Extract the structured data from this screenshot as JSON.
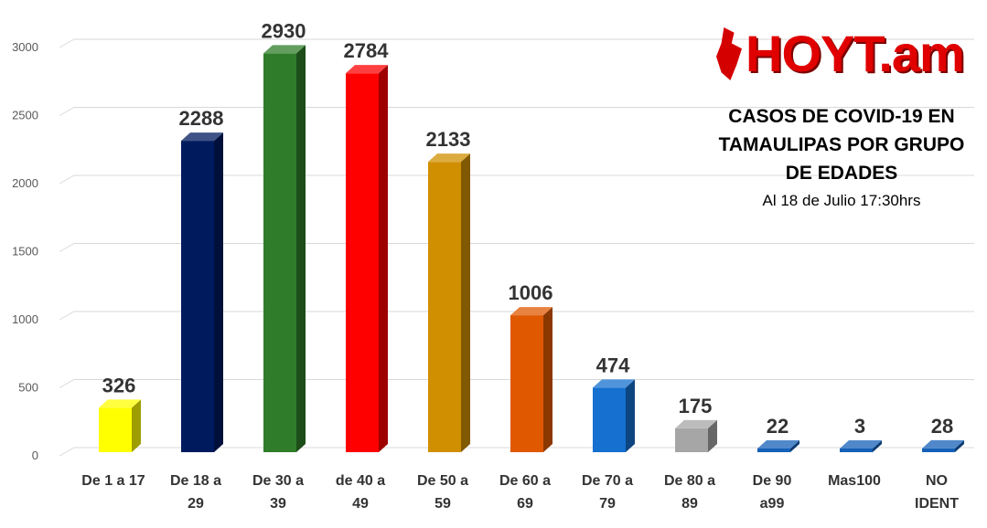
{
  "brand": {
    "logo_text": "HOYT.am"
  },
  "chart_data": {
    "type": "bar",
    "title_lines": [
      "CASOS DE COVID-19 EN",
      "TAMAULIPAS POR GRUPO",
      "DE EDADES"
    ],
    "subtitle": "Al 18 de Julio 17:30hrs",
    "categories": [
      [
        "De 1 a 17"
      ],
      [
        "De 18 a",
        "29"
      ],
      [
        "De 30 a",
        "39"
      ],
      [
        "de 40 a",
        "49"
      ],
      [
        "De 50 a",
        "59"
      ],
      [
        "De 60 a",
        "69"
      ],
      [
        "De 70 a",
        "79"
      ],
      [
        "De 80 a",
        "89"
      ],
      [
        "De 90",
        "a99"
      ],
      [
        "Mas100"
      ],
      [
        "NO",
        "IDENT"
      ]
    ],
    "values": [
      326,
      2288,
      2930,
      2784,
      2133,
      1006,
      474,
      175,
      22,
      3,
      28
    ],
    "colors": [
      "#ffff00",
      "#001a5e",
      "#2f7d2a",
      "#ff0000",
      "#d08f00",
      "#e05800",
      "#1570d0",
      "#a6a6a6",
      "#1560b8",
      "#1560b8",
      "#1560b8"
    ],
    "y_ticks": [
      0,
      500,
      1000,
      1500,
      2000,
      2500,
      3000
    ],
    "ylim": [
      0,
      3000
    ],
    "grid": true,
    "legend": "none"
  }
}
